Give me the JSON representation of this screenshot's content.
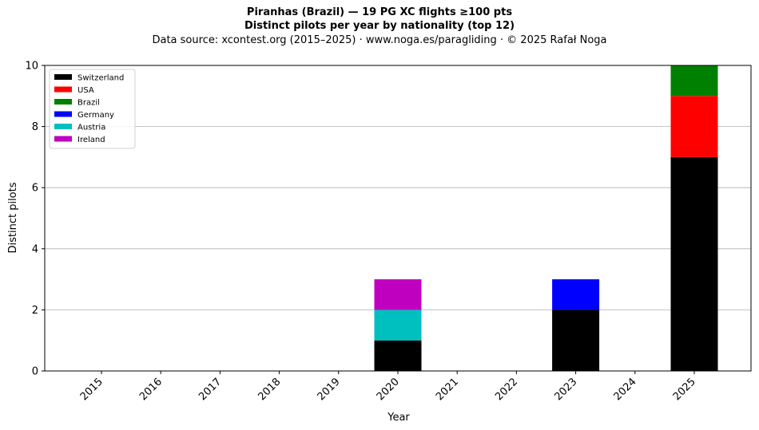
{
  "chart_data": {
    "type": "bar",
    "stacked": true,
    "title": "Piranhas (Brazil)  —  19 PG XC flights ≥100 pts",
    "subtitle": "Distinct pilots per year by nationality (top 12)",
    "source": "Data source: xcontest.org (2015–2025)  ·  www.noga.es/paragliding  ·  © 2025 Rafał Noga",
    "xlabel": "Year",
    "ylabel": "Distinct pilots",
    "ylim": [
      0,
      10
    ],
    "yticks": [
      0,
      2,
      4,
      6,
      8,
      10
    ],
    "grid": "horizontal",
    "legend_position": "top-left",
    "categories": [
      "2015",
      "2016",
      "2017",
      "2018",
      "2019",
      "2020",
      "2021",
      "2022",
      "2023",
      "2024",
      "2025"
    ],
    "series": [
      {
        "name": "Switzerland",
        "color": "#000000",
        "values": [
          0,
          0,
          0,
          0,
          0,
          1,
          0,
          0,
          2,
          0,
          7
        ]
      },
      {
        "name": "USA",
        "color": "#ff0000",
        "values": [
          0,
          0,
          0,
          0,
          0,
          0,
          0,
          0,
          0,
          0,
          2
        ]
      },
      {
        "name": "Brazil",
        "color": "#008000",
        "values": [
          0,
          0,
          0,
          0,
          0,
          0,
          0,
          0,
          0,
          0,
          1
        ]
      },
      {
        "name": "Germany",
        "color": "#0000ff",
        "values": [
          0,
          0,
          0,
          0,
          0,
          0,
          0,
          0,
          1,
          0,
          0
        ]
      },
      {
        "name": "Austria",
        "color": "#00bfbf",
        "values": [
          0,
          0,
          0,
          0,
          0,
          1,
          0,
          0,
          0,
          0,
          0
        ]
      },
      {
        "name": "Ireland",
        "color": "#bf00bf",
        "values": [
          0,
          0,
          0,
          0,
          0,
          1,
          0,
          0,
          0,
          0,
          0
        ]
      }
    ]
  }
}
